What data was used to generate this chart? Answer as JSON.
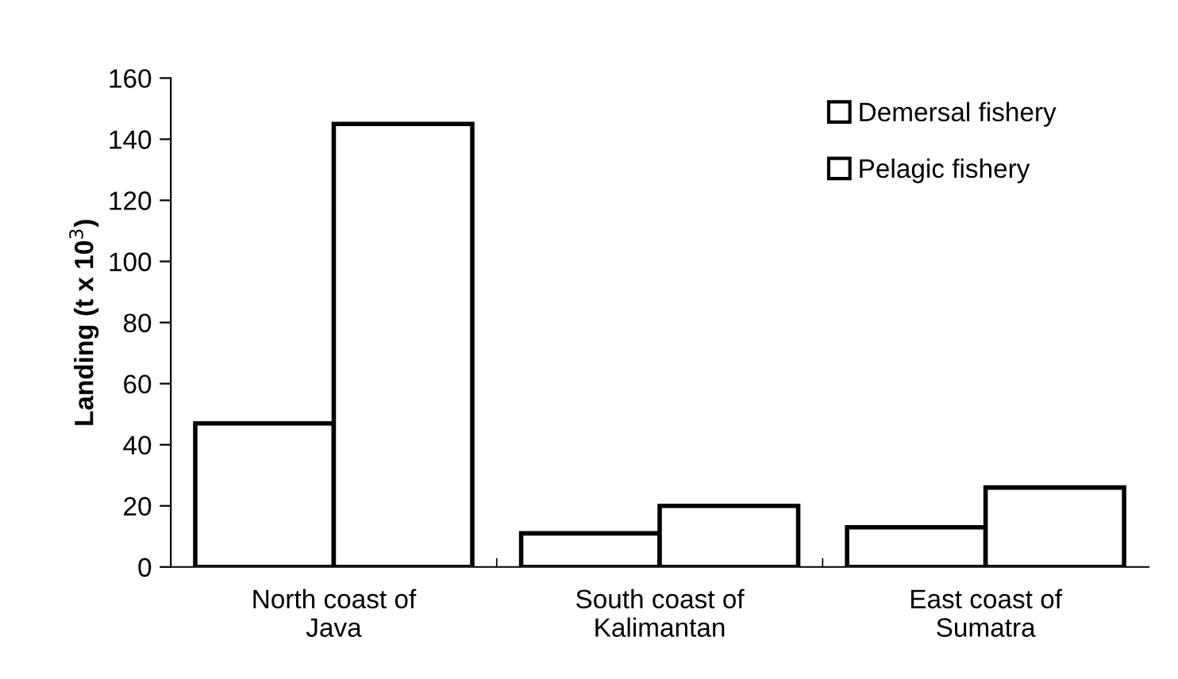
{
  "chart_data": {
    "type": "bar",
    "ylabel": "Landing (t x 10$^{3}$)",
    "categories": [
      "North coast of\nJava",
      "South coast of\nKalimantan",
      "East coast of\nSumatra"
    ],
    "series": [
      {
        "name": "Demersal fishery",
        "color": "#ffffff",
        "values": [
          47,
          11,
          13
        ]
      },
      {
        "name": "Pelagic fishery",
        "color": "#ffffff",
        "values": [
          145,
          20,
          26
        ]
      }
    ],
    "ylim": [
      0,
      160
    ],
    "yticks": [
      0,
      20,
      40,
      60,
      80,
      100,
      120,
      140,
      160
    ],
    "grid": false,
    "legend": "top right"
  }
}
